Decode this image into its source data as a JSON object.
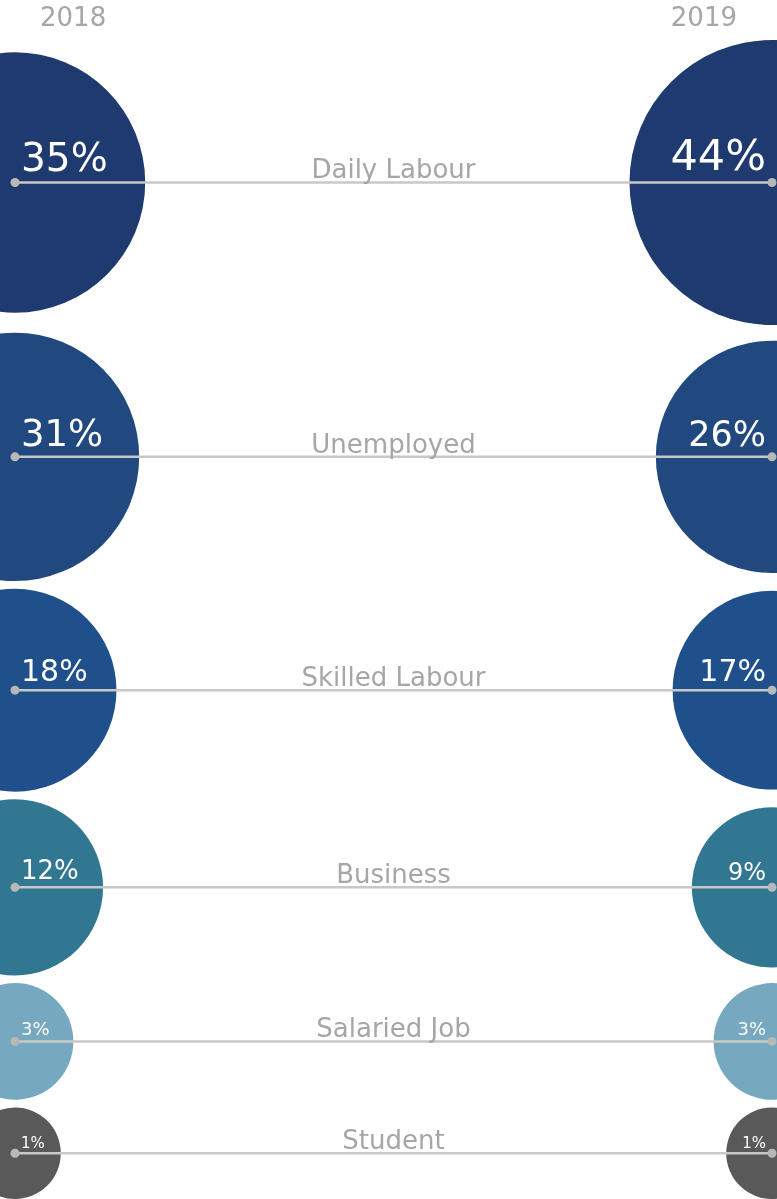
{
  "chart_data": {
    "type": "other",
    "categories": [
      "Daily Labour",
      "Unemployed",
      "Skilled Labour",
      "Business",
      "Salaried Job",
      "Student"
    ],
    "series": [
      {
        "name": "2018",
        "values": [
          35,
          31,
          18,
          12,
          3,
          1
        ],
        "value_labels": [
          "35%",
          "31%",
          "18%",
          "12%",
          "3%",
          "1%"
        ],
        "colors": [
          "#1f3a6e",
          "#21497f",
          "#1f508c",
          "#327791",
          "#76a9c0",
          "#595959"
        ]
      },
      {
        "name": "2019",
        "values": [
          44,
          26,
          17,
          9,
          3,
          1
        ],
        "value_labels": [
          "44%",
          "26%",
          "17%",
          "9%",
          "3%",
          "1%"
        ],
        "colors": [
          "#1f3a6e",
          "#21497f",
          "#1f508c",
          "#327791",
          "#76a9c0",
          "#595959"
        ]
      }
    ],
    "legend": "top"
  }
}
